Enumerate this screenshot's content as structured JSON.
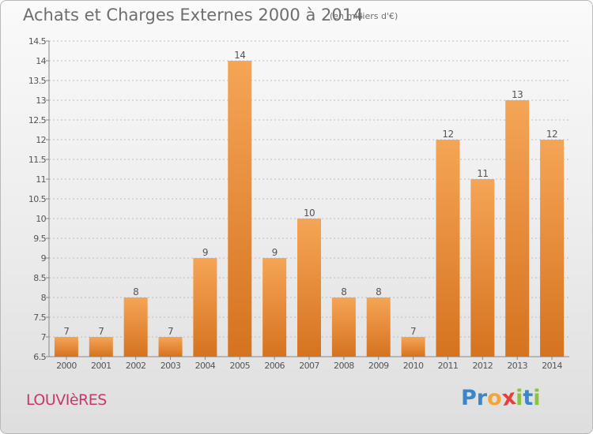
{
  "title": "Achats et Charges Externes 2000 à 2014",
  "subtitle": "(en milliers d'€)",
  "location": "LOUVIèRES",
  "brand": {
    "letters": [
      {
        "char": "P",
        "color": "#3a86c8"
      },
      {
        "char": "r",
        "color": "#3a86c8"
      },
      {
        "char": "o",
        "color": "#f2a53a"
      },
      {
        "char": "x",
        "color": "#e63e3e"
      },
      {
        "char": "i",
        "color": "#8cc23f"
      },
      {
        "char": "t",
        "color": "#3a86c8"
      },
      {
        "char": "i",
        "color": "#8cc23f"
      }
    ]
  },
  "colors": {
    "bar_light": "#f5a556",
    "bar_dark": "#d5731f",
    "axis": "#888888",
    "grid": "#bdbdbd",
    "text": "#555555"
  },
  "chart_data": {
    "type": "bar",
    "categories": [
      "2000",
      "2001",
      "2002",
      "2003",
      "2004",
      "2005",
      "2006",
      "2007",
      "2008",
      "2009",
      "2010",
      "2011",
      "2012",
      "2013",
      "2014"
    ],
    "values": [
      7,
      7,
      8,
      7,
      9,
      14,
      9,
      10,
      8,
      8,
      7,
      12,
      11,
      13,
      12
    ],
    "value_labels": [
      "7",
      "7",
      "8",
      "7",
      "9",
      "14",
      "9",
      "10",
      "8",
      "8",
      "7",
      "12",
      "11",
      "13",
      "12"
    ],
    "yticks": [
      "6.5",
      "7",
      "7.5",
      "8",
      "8.5",
      "9",
      "9.5",
      "10",
      "10.5",
      "11",
      "11.5",
      "12",
      "12.5",
      "13",
      "13.5",
      "14",
      "14.5"
    ],
    "ylim": [
      6.5,
      14.5
    ],
    "grid": "horizontal-dashed",
    "legend": "none"
  }
}
